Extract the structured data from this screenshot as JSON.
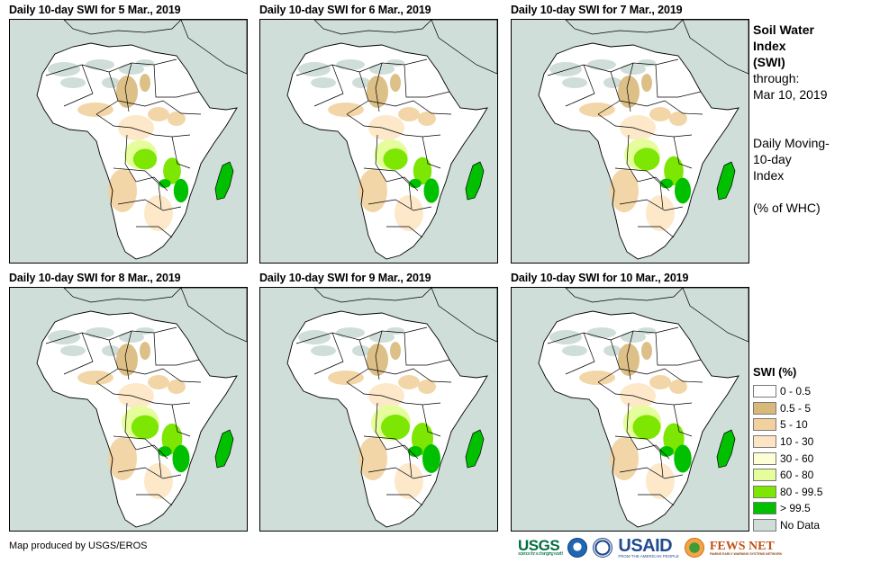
{
  "panels": [
    {
      "title": "Daily 10-day SWI for 5 Mar., 2019",
      "green_extent": 0.82
    },
    {
      "title": "Daily 10-day SWI for 6 Mar., 2019",
      "green_extent": 0.85
    },
    {
      "title": "Daily 10-day SWI for 7 Mar., 2019",
      "green_extent": 0.9
    },
    {
      "title": "Daily 10-day SWI for 8 Mar., 2019",
      "green_extent": 0.95
    },
    {
      "title": "Daily 10-day SWI for 9 Mar., 2019",
      "green_extent": 1.0
    },
    {
      "title": "Daily 10-day SWI for 10 Mar., 2019",
      "green_extent": 0.97
    }
  ],
  "info": {
    "title_line1": "Soil Water",
    "title_line2": "Index",
    "title_line3": "(SWI)",
    "through_label": "through:",
    "through_date": "Mar 10, 2019",
    "index_line1": "Daily Moving-",
    "index_line2": "10-day",
    "index_line3": "Index",
    "units": "(% of WHC)"
  },
  "legend": {
    "title": "SWI (%)",
    "items": [
      {
        "label": "0 - 0.5",
        "color": "#ffffff"
      },
      {
        "label": "0.5 - 5",
        "color": "#d9b97a"
      },
      {
        "label": "5 - 10",
        "color": "#f2d19f"
      },
      {
        "label": "10 - 30",
        "color": "#fde5c4"
      },
      {
        "label": "30 - 60",
        "color": "#fdfdd6"
      },
      {
        "label": "60 - 80",
        "color": "#e6fd9b"
      },
      {
        "label": "80 - 99.5",
        "color": "#7de602"
      },
      {
        "label": "> 99.5",
        "color": "#00c000"
      },
      {
        "label": "No Data",
        "color": "#cfded8"
      }
    ]
  },
  "colors": {
    "ocean": "#cfded8",
    "border": "#000000"
  },
  "credit": "Map produced by USGS/EROS",
  "logos": {
    "usgs": "USGS",
    "usgs_tagline": "science for a changing world",
    "noaa": "NOAA",
    "usaid": "USAID",
    "usaid_tagline": "FROM THE AMERICAN PEOPLE",
    "fews": "FEWS NET",
    "fews_tagline": "FAMINE EARLY WARNING SYSTEMS NETWORK"
  }
}
